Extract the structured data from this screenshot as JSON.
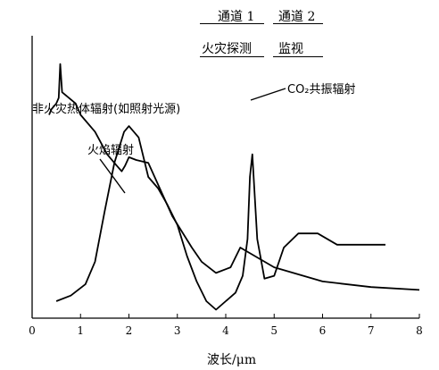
{
  "header": {
    "channel1_label": "通道 1",
    "channel2_label": "通道 2",
    "channel1_role": "火灾探测",
    "channel2_role": "监视"
  },
  "chart_data": {
    "type": "line",
    "title": "",
    "xlabel": "波长/μm",
    "ylabel": "",
    "xlim": [
      0,
      8
    ],
    "xticks": [
      "0",
      "1",
      "2",
      "3",
      "4",
      "5",
      "6",
      "7",
      "8"
    ],
    "grid": false,
    "annotations": {
      "non_fire": "非火灾热体辐射(如照射光源)",
      "flame": "火焰辐射",
      "co2": "CO₂共振辐射"
    },
    "series": [
      {
        "name": "非火灾热体辐射(如照射光源)",
        "x": [
          0.35,
          0.4,
          0.5,
          0.55,
          0.58,
          0.62,
          0.9,
          1.0,
          1.3,
          1.55,
          1.75,
          1.85,
          1.92,
          2.0,
          2.15,
          2.4,
          2.9,
          3.3,
          3.5,
          3.8,
          4.1,
          4.3,
          5.0,
          6.0,
          7.0,
          8.0
        ],
        "y": [
          0.72,
          0.74,
          0.76,
          0.78,
          0.9,
          0.8,
          0.76,
          0.72,
          0.66,
          0.58,
          0.54,
          0.52,
          0.54,
          0.57,
          0.56,
          0.55,
          0.36,
          0.25,
          0.2,
          0.16,
          0.18,
          0.25,
          0.18,
          0.13,
          0.11,
          0.1
        ]
      },
      {
        "name": "火焰辐射",
        "x": [
          0.5,
          0.8,
          1.1,
          1.3,
          1.5,
          1.7,
          1.9,
          2.0,
          2.2,
          2.4,
          2.6,
          2.8,
          3.0,
          3.2,
          3.4,
          3.6,
          3.8,
          4.0,
          4.2,
          4.35,
          4.45,
          4.5,
          4.55,
          4.65,
          4.8,
          5.0,
          5.2,
          5.5,
          5.9,
          6.3,
          6.8,
          7.3
        ],
        "y": [
          0.06,
          0.08,
          0.12,
          0.2,
          0.38,
          0.55,
          0.66,
          0.68,
          0.64,
          0.5,
          0.46,
          0.4,
          0.33,
          0.22,
          0.13,
          0.06,
          0.03,
          0.06,
          0.09,
          0.15,
          0.28,
          0.5,
          0.58,
          0.28,
          0.14,
          0.15,
          0.25,
          0.3,
          0.3,
          0.26,
          0.26,
          0.26
        ]
      }
    ]
  }
}
